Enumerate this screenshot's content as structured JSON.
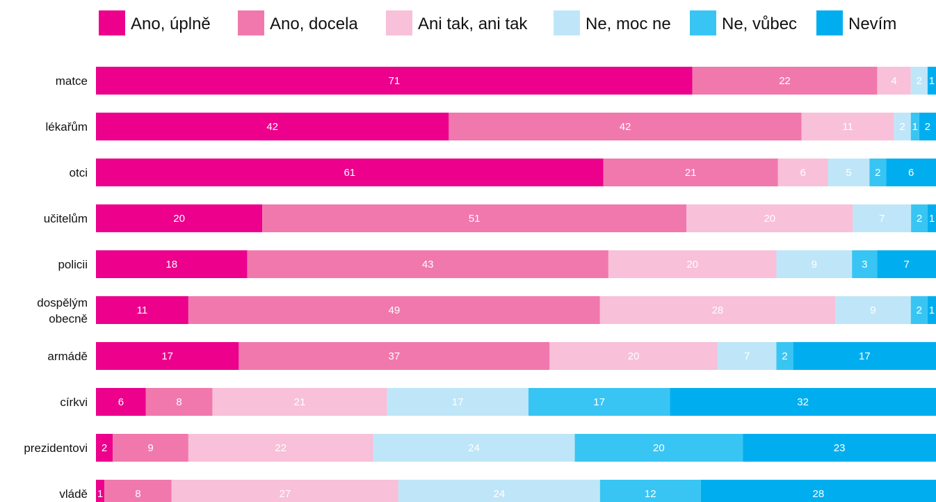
{
  "chart_data": {
    "type": "bar",
    "orientation": "horizontal",
    "stacked": true,
    "legend_position": "top",
    "categories": [
      "matce",
      "lékařům",
      "otci",
      "učitelům",
      "policii",
      "dospělým obecně",
      "armádě",
      "církvi",
      "prezidentovi",
      "vládě"
    ],
    "series": [
      {
        "name": "Ano, úplně",
        "color": "#ec008c",
        "label_color": "#ffffff",
        "values": [
          71,
          42,
          61,
          20,
          18,
          11,
          17,
          6,
          2,
          1
        ]
      },
      {
        "name": "Ano, docela",
        "color": "#f178ad",
        "label_color": "#ffffff",
        "values": [
          22,
          42,
          21,
          51,
          43,
          49,
          37,
          8,
          9,
          8
        ]
      },
      {
        "name": "Ani tak, ani tak",
        "color": "#f8c0d9",
        "label_color": "#ffffff",
        "values": [
          4,
          11,
          6,
          20,
          20,
          28,
          20,
          21,
          22,
          27
        ]
      },
      {
        "name": "Ne, moc ne",
        "color": "#bfe6f8",
        "label_color": "#ffffff",
        "values": [
          2,
          2,
          5,
          7,
          9,
          9,
          7,
          17,
          24,
          24
        ]
      },
      {
        "name": "Ne, vůbec",
        "color": "#39c5f3",
        "label_color": "#ffffff",
        "values": [
          0,
          1,
          2,
          2,
          3,
          2,
          2,
          17,
          20,
          12
        ]
      },
      {
        "name": "Nevím",
        "color": "#00aeef",
        "label_color": "#ffffff",
        "values": [
          1,
          2,
          6,
          1,
          7,
          1,
          17,
          32,
          23,
          28
        ]
      }
    ]
  }
}
